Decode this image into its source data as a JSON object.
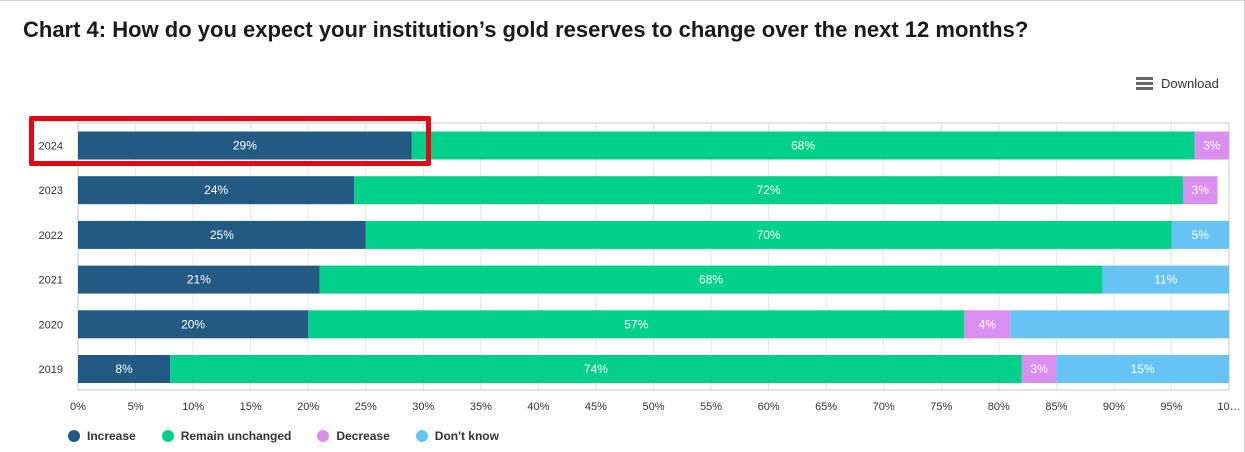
{
  "title": "Chart 4: How do you expect your institution’s gold reserves to change over the next 12 months?",
  "download_label": "Download",
  "chart_data": {
    "type": "bar",
    "orientation": "horizontal",
    "stacked": true,
    "categories": [
      "2024",
      "2023",
      "2022",
      "2021",
      "2020",
      "2019"
    ],
    "series": [
      {
        "name": "Increase",
        "color": "#235a84",
        "values": [
          29,
          24,
          25,
          21,
          20,
          8
        ],
        "labels": [
          "29%",
          "24%",
          "25%",
          "21%",
          "20%",
          "8%"
        ]
      },
      {
        "name": "Remain unchanged",
        "color": "#00d08a",
        "values": [
          68,
          72,
          70,
          68,
          57,
          74
        ],
        "labels": [
          "68%",
          "72%",
          "70%",
          "68%",
          "57%",
          "74%"
        ]
      },
      {
        "name": "Decrease",
        "color": "#d98ef0",
        "values": [
          3,
          3,
          0,
          0,
          4,
          3
        ],
        "labels": [
          "3%",
          "3%",
          "",
          "",
          "4%",
          "3%"
        ]
      },
      {
        "name": "Don't know",
        "color": "#66c4f5",
        "values": [
          0,
          0,
          5,
          11,
          19,
          15
        ],
        "labels": [
          "",
          "",
          "5%",
          "11%",
          "",
          "15%"
        ]
      }
    ],
    "x_ticks": [
      "0%",
      "5%",
      "10%",
      "15%",
      "20%",
      "25%",
      "30%",
      "35%",
      "40%",
      "45%",
      "50%",
      "55%",
      "60%",
      "65%",
      "70%",
      "75%",
      "80%",
      "85%",
      "90%",
      "95%",
      "10…"
    ],
    "xlim": [
      0,
      100
    ],
    "legend_position": "bottom-left",
    "highlighted_category": "2024"
  }
}
